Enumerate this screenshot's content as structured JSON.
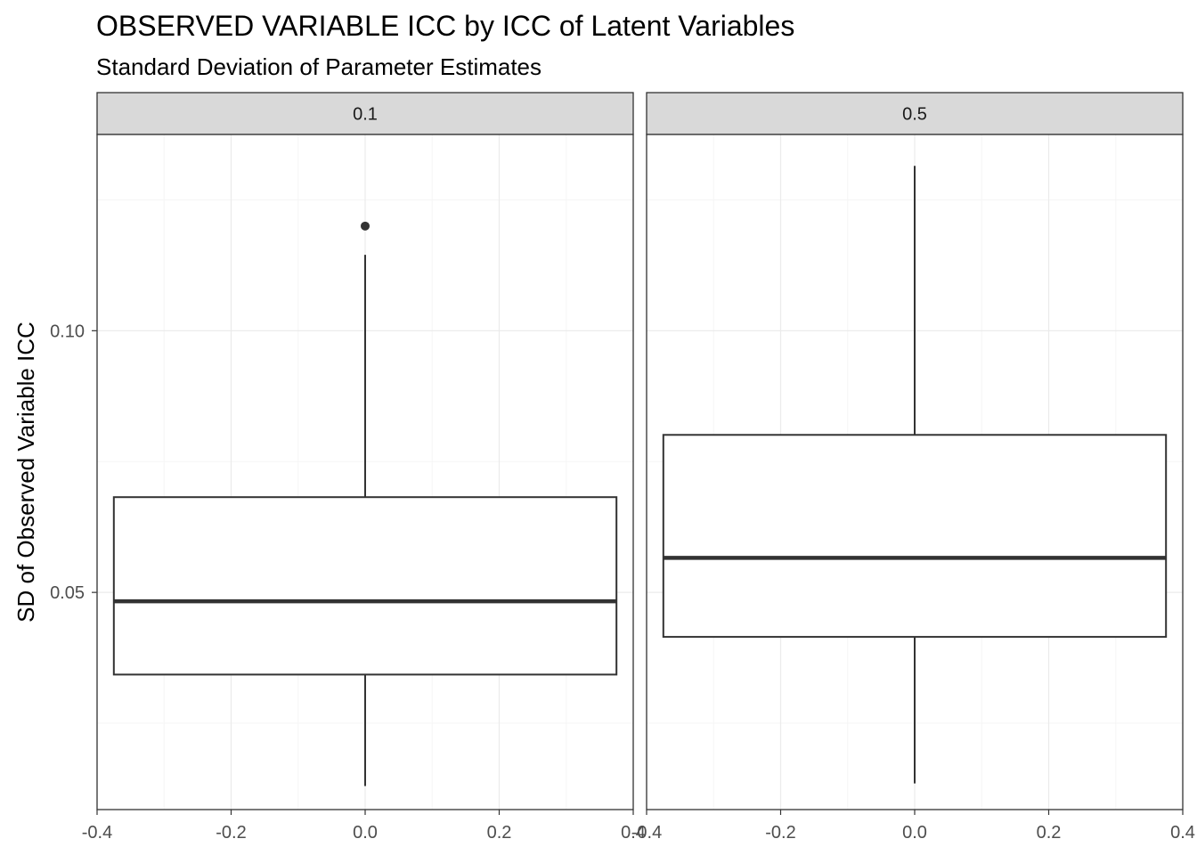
{
  "chart_data": {
    "type": "boxplot",
    "title": "OBSERVED VARIABLE ICC by ICC of Latent Variables",
    "subtitle": "Standard Deviation of Parameter Estimates",
    "ylabel": "SD of Observed Variable ICC",
    "xlabel": "",
    "xlim": [
      -0.4,
      0.4
    ],
    "ylim": [
      0.0085,
      0.1375
    ],
    "x_ticks": [
      "-0.4",
      "-0.2",
      "0.0",
      "0.2",
      "0.4"
    ],
    "x_tick_values": [
      -0.4,
      -0.2,
      0.0,
      0.2,
      0.4
    ],
    "y_ticks": [
      "0.05",
      "0.10"
    ],
    "y_tick_values": [
      0.05,
      0.1
    ],
    "grid": true,
    "box_half_width": 0.375,
    "panels": [
      {
        "strip": "0.1",
        "min": 0.013,
        "q1": 0.0343,
        "median": 0.0483,
        "q3": 0.0682,
        "max": 0.1145,
        "outliers": [
          0.12
        ]
      },
      {
        "strip": "0.5",
        "min": 0.0135,
        "q1": 0.0415,
        "median": 0.0566,
        "q3": 0.0801,
        "max": 0.1315,
        "outliers": []
      }
    ],
    "colors": {
      "strip_fill": "#d9d9d9",
      "panel_border": "#333333",
      "grid_major": "#ebebeb",
      "grid_minor": "#f5f5f5",
      "box_line": "#333333"
    }
  }
}
